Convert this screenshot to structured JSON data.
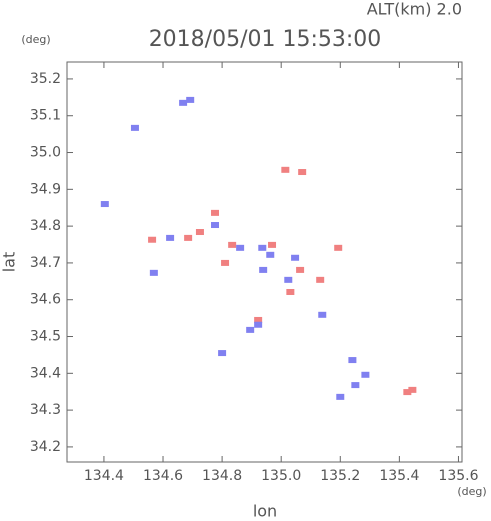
{
  "chart_data": {
    "type": "scatter",
    "title": "2018/05/01 15:53:00",
    "subtitle": "ALT(km) 2.0",
    "x_label": "lon",
    "y_label": "lat",
    "x_unit": "(deg)",
    "y_unit": "(deg)",
    "xlim": [
      134.275,
      135.612
    ],
    "ylim": [
      34.159,
      35.246
    ],
    "xticks": [
      134.4,
      134.6,
      134.8,
      {
        "value": 135,
        "label": "135.0"
      },
      135.2,
      135.4,
      135.6
    ],
    "yticks": [
      34.2,
      34.3,
      34.4,
      34.5,
      34.6,
      34.7,
      34.8,
      34.9,
      {
        "value": 35,
        "label": "35.0"
      },
      35.1,
      35.2
    ],
    "series": [
      {
        "color": "#f08080",
        "x": [
          134.725,
          134.776,
          134.834,
          135.014,
          135.071,
          134.969,
          135.064,
          135.193,
          135.031,
          135.427,
          135.444,
          134.563,
          134.685,
          134.81,
          134.922,
          135.132
        ],
        "y": [
          34.784,
          34.836,
          34.749,
          34.953,
          34.947,
          34.749,
          34.681,
          34.741,
          34.621,
          34.349,
          34.355,
          34.763,
          34.768,
          34.7,
          34.545,
          34.654
        ]
      },
      {
        "color": "#8080f0",
        "x": [
          134.668,
          134.692,
          134.505,
          134.776,
          134.861,
          134.936,
          134.963,
          134.939,
          135.024,
          135.047,
          134.895,
          134.922,
          134.8,
          135.241,
          135.251,
          135.2,
          135.285,
          134.569,
          134.624,
          135.139,
          134.403
        ],
        "y": [
          35.135,
          35.143,
          35.067,
          34.803,
          34.741,
          34.741,
          34.722,
          34.681,
          34.654,
          34.714,
          34.518,
          34.532,
          34.455,
          34.436,
          34.368,
          34.336,
          34.396,
          34.673,
          34.768,
          34.559,
          34.86
        ]
      }
    ]
  }
}
